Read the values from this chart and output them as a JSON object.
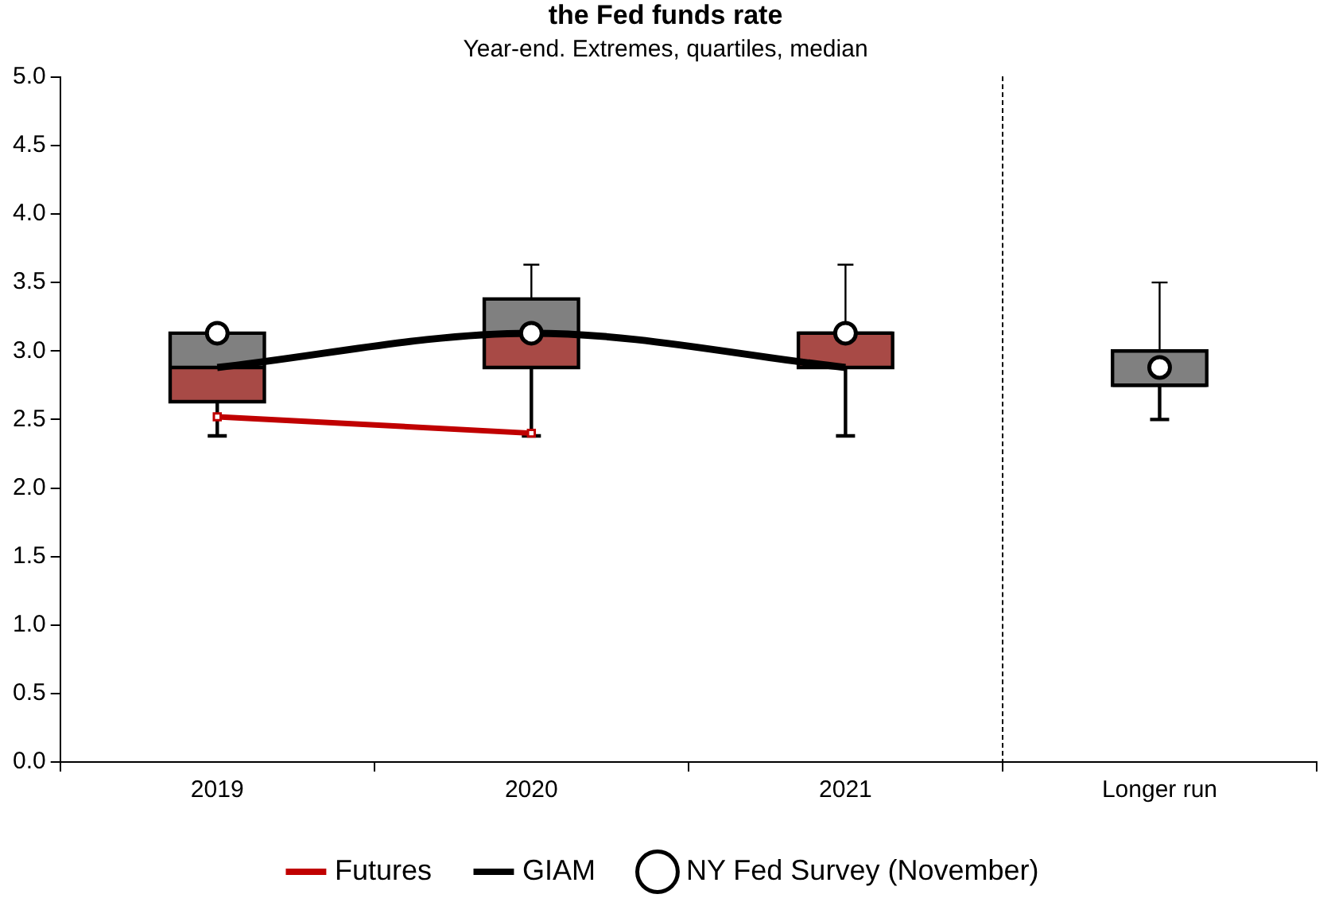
{
  "chart_data": {
    "type": "box",
    "title": "the Fed funds rate",
    "subtitle": "Year-end. Extremes, quartiles, median",
    "categories": [
      "2019",
      "2020",
      "2021",
      "Longer run"
    ],
    "ylim": [
      0,
      5
    ],
    "yticks": [
      {
        "value": 0,
        "label": "0.0"
      },
      {
        "value": 0.5,
        "label": "0.5"
      },
      {
        "value": 1,
        "label": "1.0"
      },
      {
        "value": 1.5,
        "label": "1.5"
      },
      {
        "value": 2,
        "label": "2.0"
      },
      {
        "value": 2.5,
        "label": "2.5"
      },
      {
        "value": 3,
        "label": "3.0"
      },
      {
        "value": 3.5,
        "label": "3.5"
      },
      {
        "value": 4,
        "label": "4.0"
      },
      {
        "value": 4.5,
        "label": "4.5"
      },
      {
        "value": 5,
        "label": "5.0"
      }
    ],
    "grid": false,
    "legend": "bottom",
    "series": [
      {
        "color": "#808080",
        "colors": [
          "#a84a46",
          "#a84a46",
          "#a84a46",
          "#808080"
        ],
        "boxes": [
          {
            "low": 2.38,
            "q1": 2.63,
            "median": 2.88,
            "q3": 3.13,
            "high": 3.13
          },
          {
            "low": 2.38,
            "q1": 2.88,
            "median": 3.13,
            "q3": 3.38,
            "high": 3.63
          },
          {
            "low": 2.38,
            "q1": 2.88,
            "median": 3.13,
            "q3": 3.13,
            "high": 3.63
          },
          {
            "low": 2.5,
            "q1": 2.75,
            "median": 2.75,
            "q3": 3.0,
            "high": 3.5
          }
        ]
      },
      {
        "type": "line",
        "name": "Futures",
        "color": "#c00000",
        "marker": "square",
        "values": [
          2.52,
          2.4,
          null,
          null
        ]
      },
      {
        "type": "line",
        "name": "GIAM",
        "color": "#000000",
        "marker": "none",
        "values": [
          2.88,
          3.13,
          2.88,
          null
        ]
      },
      {
        "type": "scatter",
        "name": "NY Fed Survey (November)",
        "color": "#000000",
        "marker": "circle",
        "values": [
          3.13,
          3.13,
          3.13,
          2.88
        ]
      }
    ]
  }
}
